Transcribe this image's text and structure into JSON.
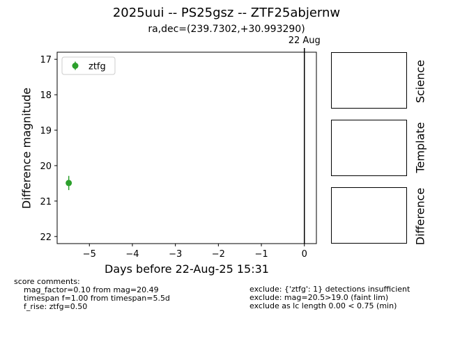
{
  "title": "2025uui -- PS25gsz -- ZTF25abjernw",
  "subtitle": "ra,dec=(239.7302,+30.993290)",
  "chart_data": {
    "type": "scatter",
    "xlabel": "Days before 22-Aug-25 15:31",
    "ylabel": "Difference magnitude",
    "xlim": [
      -5.75,
      0.28
    ],
    "ylim": [
      22.2,
      16.8
    ],
    "y_inverted": true,
    "xticks": [
      -5,
      -4,
      -3,
      -2,
      -1,
      0
    ],
    "xtick_labels": [
      "−5",
      "−4",
      "−3",
      "−2",
      "−1",
      "0"
    ],
    "yticks": [
      17,
      18,
      19,
      20,
      21,
      22
    ],
    "grid": false,
    "legend_placement": "top-left",
    "series": [
      {
        "name": "ztfg",
        "color": "#2ca02c",
        "marker": "circle-with-errorbar",
        "points": [
          {
            "x": -5.48,
            "y": 20.49,
            "yerr": 0.2
          }
        ]
      }
    ],
    "vertical_lines": [
      {
        "x": 0,
        "label": "22 Aug",
        "color": "#000000"
      }
    ]
  },
  "image_panels": [
    {
      "label": "Science"
    },
    {
      "label": "Template"
    },
    {
      "label": "Difference"
    }
  ],
  "score_comments": {
    "heading": "score comments:",
    "lines": [
      "mag_factor=0.10 from mag=20.49",
      "timespan f=1.00 from timespan=5.5d",
      "f_rise: ztfg=0.50"
    ]
  },
  "exclusions": [
    "exclude: {'ztfg': 1} detections insufficient",
    "exclude: mag=20.5>19.0 (faint lim)",
    "exclude as lc length 0.00 < 0.75 (min)"
  ]
}
